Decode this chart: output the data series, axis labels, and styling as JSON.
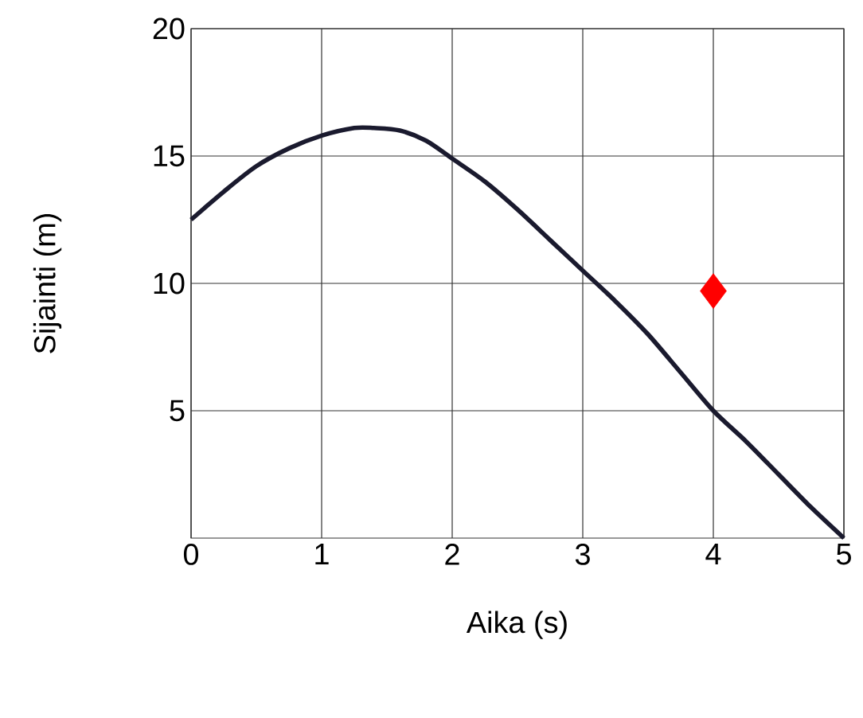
{
  "chart_data": {
    "type": "line",
    "xlabel": "Aika (s)",
    "ylabel": "Sijainti (m)",
    "xlim": [
      0,
      5
    ],
    "ylim": [
      0,
      20
    ],
    "xticks": [
      0,
      1,
      2,
      3,
      4,
      5
    ],
    "yticks": [
      5,
      10,
      15,
      20
    ],
    "grid": true,
    "series": [
      {
        "color": "#1a1a2e",
        "x": [
          0,
          0.25,
          0.5,
          0.75,
          1,
          1.25,
          1.4,
          1.6,
          1.8,
          2,
          2.25,
          2.5,
          2.75,
          3,
          3.25,
          3.5,
          3.75,
          4,
          4.25,
          4.5,
          4.75,
          5
        ],
        "values": [
          12.5,
          13.6,
          14.6,
          15.3,
          15.8,
          16.1,
          16.1,
          16,
          15.6,
          14.9,
          14,
          12.9,
          11.7,
          10.5,
          9.3,
          8,
          6.5,
          5,
          3.8,
          2.5,
          1.2,
          0
        ]
      },
      {
        "type": "scatter",
        "color": "#ff0000",
        "marker": "diamond",
        "x": [
          4
        ],
        "values": [
          9.7
        ]
      }
    ]
  }
}
